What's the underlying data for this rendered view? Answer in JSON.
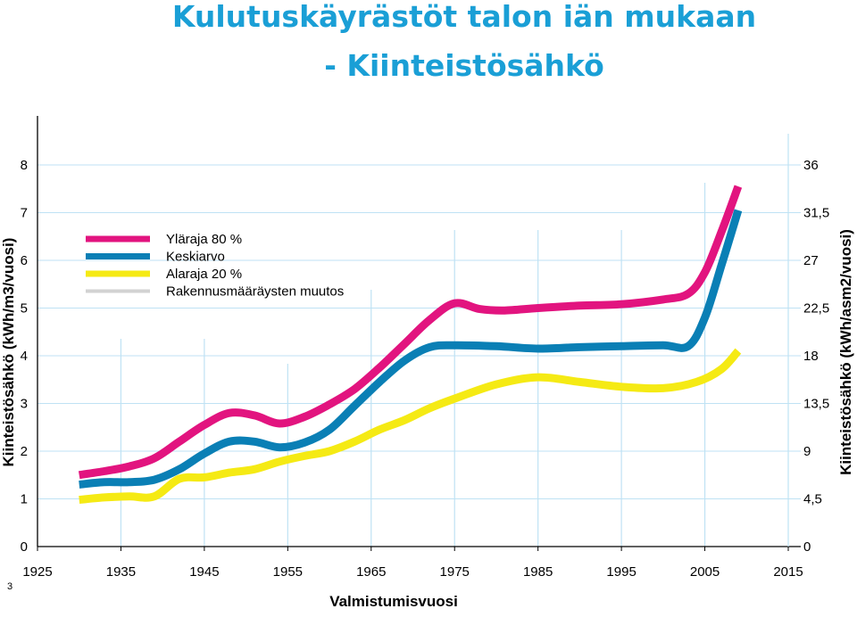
{
  "title_line1": "Kulutuskäyrästöt talon iän mukaan",
  "title_line2": "- Kiinteistösähkö",
  "page_number": "3",
  "chart_data": {
    "type": "line",
    "title": "Kulutuskäyrästöt talon iän mukaan - Kiinteistösähkö",
    "xlabel": "Valmistumisvuosi",
    "ylabel": "Kiinteistösähkö (kWh/m3/vuosi)",
    "ylabel_right": "Kiinteistösähkö (kWh/asm2/vuosi)",
    "xlim": [
      1925,
      2015
    ],
    "ylim": [
      0,
      8
    ],
    "ylim_right": [
      0,
      36
    ],
    "x_ticks": [
      "1925",
      "1935",
      "1945",
      "1955",
      "1965",
      "1975",
      "1985",
      "1995",
      "2005",
      "2015"
    ],
    "y_ticks": [
      "0",
      "1",
      "2",
      "3",
      "4",
      "5",
      "6",
      "7",
      "8"
    ],
    "y_ticks_right": [
      "0",
      "4,5",
      "9",
      "13,5",
      "18",
      "22,5",
      "27",
      "31,5",
      "36"
    ],
    "legend_position": "top-left",
    "grid": true,
    "series": [
      {
        "name": "Yläraja 80 %",
        "color": "#e2147f",
        "x": [
          1930,
          1933,
          1936,
          1939,
          1942,
          1945,
          1948,
          1951,
          1954,
          1957,
          1960,
          1963,
          1966,
          1969,
          1972,
          1975,
          1978,
          1981,
          1985,
          1990,
          1995,
          2000,
          2003,
          2005,
          2007,
          2009
        ],
        "y": [
          1.5,
          1.58,
          1.68,
          1.85,
          2.2,
          2.55,
          2.8,
          2.75,
          2.58,
          2.72,
          2.98,
          3.3,
          3.75,
          4.25,
          4.75,
          5.1,
          4.98,
          4.95,
          5.0,
          5.05,
          5.08,
          5.18,
          5.3,
          5.75,
          6.6,
          7.55
        ]
      },
      {
        "name": "Keskiarvo",
        "color": "#0a7fb5",
        "x": [
          1930,
          1933,
          1936,
          1939,
          1942,
          1945,
          1948,
          1951,
          1954,
          1957,
          1960,
          1963,
          1966,
          1969,
          1972,
          1975,
          1980,
          1985,
          1990,
          1995,
          2000,
          2003,
          2005,
          2007,
          2009
        ],
        "y": [
          1.3,
          1.35,
          1.35,
          1.4,
          1.62,
          1.95,
          2.2,
          2.2,
          2.08,
          2.18,
          2.45,
          2.95,
          3.45,
          3.9,
          4.18,
          4.22,
          4.2,
          4.15,
          4.18,
          4.2,
          4.22,
          4.2,
          4.8,
          5.9,
          7.05
        ]
      },
      {
        "name": "Alaraja 20 %",
        "color": "#f5ea14",
        "x": [
          1930,
          1933,
          1936,
          1939,
          1942,
          1945,
          1948,
          1951,
          1954,
          1957,
          1960,
          1963,
          1966,
          1969,
          1972,
          1975,
          1980,
          1985,
          1990,
          1995,
          2000,
          2004,
          2007,
          2009
        ],
        "y": [
          0.98,
          1.03,
          1.05,
          1.05,
          1.42,
          1.45,
          1.55,
          1.62,
          1.78,
          1.9,
          2.0,
          2.2,
          2.45,
          2.65,
          2.9,
          3.1,
          3.4,
          3.55,
          3.45,
          3.35,
          3.32,
          3.45,
          3.72,
          4.1
        ]
      }
    ],
    "legend_extra": [
      {
        "name": "Rakennusmääräysten muutos",
        "color": "#d2d2d2"
      }
    ],
    "regulation_change_years": [
      1935,
      1945,
      1955,
      1965,
      1975,
      1985,
      1995,
      2005
    ]
  }
}
